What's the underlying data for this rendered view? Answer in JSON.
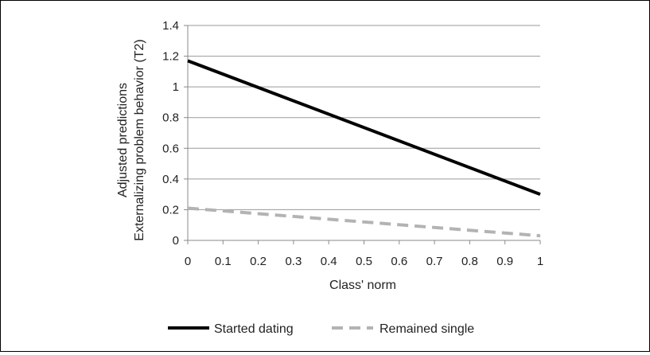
{
  "chart_data": {
    "type": "line",
    "title": "",
    "xlabel": "Class' norm",
    "ylabel_lines": [
      "Adjusted predictions",
      "Externalizing problem behavior (T2)"
    ],
    "x": [
      0,
      1
    ],
    "xlim": [
      0,
      1
    ],
    "ylim": [
      0,
      1.4
    ],
    "x_ticks": [
      "0",
      "0.1",
      "0.2",
      "0.3",
      "0.4",
      "0.5",
      "0.6",
      "0.7",
      "0.8",
      "0.9",
      "1"
    ],
    "y_ticks": [
      "0",
      "0.2",
      "0.4",
      "0.6",
      "0.8",
      "1",
      "1.2",
      "1.4"
    ],
    "grid": "horizontal",
    "legend_position": "bottom",
    "series": [
      {
        "name": "Started dating",
        "values": [
          1.17,
          0.3
        ],
        "color": "#000000",
        "style": "solid"
      },
      {
        "name": "Remained single",
        "values": [
          0.21,
          0.03
        ],
        "color": "#b3b3b3",
        "style": "dashed"
      }
    ]
  }
}
